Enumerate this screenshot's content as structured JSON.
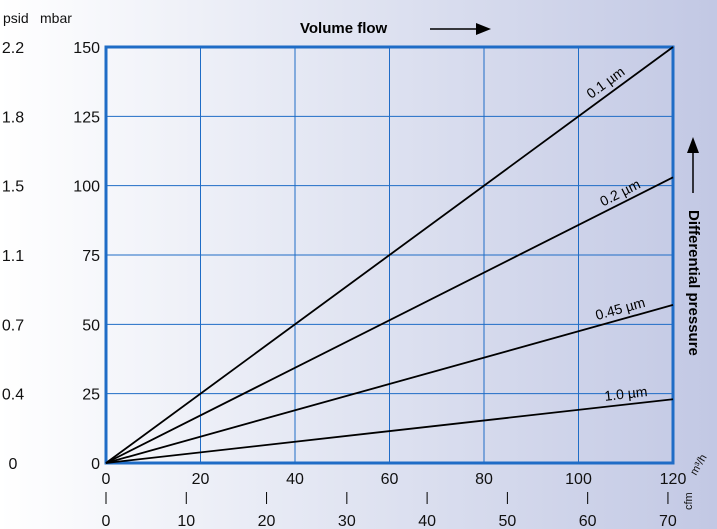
{
  "chart_data": {
    "type": "line",
    "title": "Volume flow",
    "ylabel": "Differential pressure",
    "x_primary": {
      "unit": "m³/h",
      "range": [
        0,
        120
      ],
      "ticks": [
        0,
        20,
        40,
        60,
        80,
        100,
        120
      ],
      "tick_labels": [
        "0",
        "20",
        "40",
        "60",
        "80",
        "100",
        "120"
      ]
    },
    "x_secondary": {
      "unit": "cfm",
      "ticks": [
        0,
        10,
        20,
        30,
        40,
        50,
        60,
        70
      ],
      "tick_labels": [
        "0",
        "10",
        "20",
        "30",
        "40",
        "50",
        "60",
        "70"
      ]
    },
    "y_primary": {
      "unit": "mbar",
      "range": [
        0,
        150
      ],
      "ticks": [
        0,
        25,
        50,
        75,
        100,
        125,
        150
      ],
      "tick_labels": [
        "0",
        "25",
        "50",
        "75",
        "100",
        "125",
        "150"
      ]
    },
    "y_secondary": {
      "unit": "psid",
      "tick_labels": [
        "0",
        "0.4",
        "0.7",
        "1.1",
        "1.5",
        "1.8",
        "2.2"
      ]
    },
    "grid": true,
    "series": [
      {
        "name": "0.1 µm",
        "points": [
          [
            0,
            0
          ],
          [
            120,
            150
          ]
        ]
      },
      {
        "name": "0.2 µm",
        "points": [
          [
            0,
            0
          ],
          [
            120,
            103
          ]
        ]
      },
      {
        "name": "0.45 µm",
        "points": [
          [
            0,
            0
          ],
          [
            120,
            57
          ]
        ]
      },
      {
        "name": "1.0 µm",
        "points": [
          [
            0,
            0
          ],
          [
            120,
            23
          ]
        ]
      }
    ],
    "colors": {
      "frame": "#1f6cc6",
      "grid": "#1f6cc6",
      "lines": "#000000"
    }
  }
}
